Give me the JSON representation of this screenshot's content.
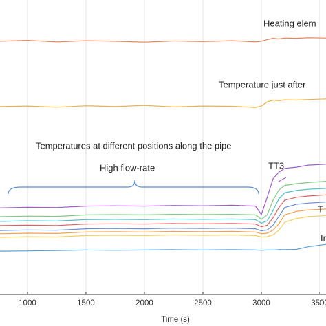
{
  "chart_data": {
    "type": "line",
    "x_label": "Time (s)",
    "x": [
      765,
      1000,
      1250,
      1500,
      1750,
      2000,
      2250,
      2500,
      2750,
      2950,
      3000,
      3050,
      3100,
      3150,
      3200,
      3300,
      3400,
      3553
    ],
    "xlim": [
      765,
      3553
    ],
    "xticks": [
      1000,
      1500,
      2000,
      2500,
      3000,
      3500
    ],
    "ylim": [
      0,
      100
    ],
    "grid": true,
    "annotations": [
      "Heating elem",
      "Temperature just after",
      "Temperatures at different positions along the pipe",
      "High flow-rate",
      "TT3",
      "T",
      "In"
    ],
    "series": [
      {
        "color": "#e8825a",
        "values": [
          86,
          86.3,
          85.8,
          86.2,
          86,
          85.7,
          86.1,
          85.9,
          86.2,
          85.8,
          86,
          86.6,
          87,
          86.8,
          87.1,
          87,
          87.2,
          87.1
        ]
      },
      {
        "color": "#f0b040",
        "values": [
          63.8,
          64,
          63.6,
          64.1,
          63.8,
          64.2,
          63.7,
          64,
          63.9,
          63.5,
          64,
          65.4,
          66,
          65.8,
          66.1,
          66,
          66.2,
          66.4
        ]
      },
      {
        "color": "#a05cc8",
        "values": [
          29.4,
          29.6,
          29.5,
          30,
          30.1,
          30,
          30.2,
          30.1,
          30.3,
          30,
          27.1,
          33,
          39.3,
          41.5,
          42.8,
          43.2,
          43.9,
          44.2
        ]
      },
      {
        "color": "#7fc97f",
        "values": [
          26.4,
          26.6,
          26.5,
          27,
          27.1,
          27,
          27.2,
          27.1,
          27.2,
          27,
          25.5,
          27,
          32,
          35.5,
          37,
          37.6,
          38,
          38.4
        ]
      },
      {
        "color": "#4fc0c8",
        "values": [
          24.8,
          25,
          24.9,
          25.4,
          25.5,
          25.4,
          25.6,
          25.5,
          25.6,
          25.4,
          24.2,
          25,
          28.5,
          32.5,
          34.5,
          35.3,
          35.7,
          36
        ]
      },
      {
        "color": "#e06060",
        "values": [
          23.4,
          23.5,
          23.4,
          23.9,
          24,
          23.9,
          24.1,
          24,
          24.1,
          23.9,
          23,
          23.5,
          26,
          29.5,
          32,
          33,
          33.4,
          33.8
        ]
      },
      {
        "color": "#6a8fd8",
        "values": [
          21.7,
          21.9,
          21.8,
          22.3,
          22.4,
          22.3,
          22.5,
          22.4,
          22.5,
          22.3,
          21.6,
          21.9,
          23.5,
          26.5,
          29.5,
          30.6,
          31,
          31.4
        ]
      },
      {
        "color": "#f5a050",
        "values": [
          20.6,
          20.8,
          20.7,
          21.2,
          21.3,
          21.2,
          21.4,
          21.3,
          21.4,
          21.2,
          20.6,
          20.8,
          21.8,
          24,
          27,
          28.2,
          28.7,
          29
        ]
      },
      {
        "color": "#f2d060",
        "values": [
          19.4,
          19.6,
          19.5,
          20,
          20.1,
          20,
          20.2,
          20.1,
          20.2,
          20,
          19.5,
          19.6,
          20.2,
          21.8,
          24.5,
          25.8,
          26.4,
          26.8
        ]
      },
      {
        "color": "#5aa0d8",
        "values": [
          14.7,
          14.8,
          14.9,
          15.1,
          15,
          15.1,
          15.2,
          15.1,
          15.2,
          15.1,
          15,
          15.1,
          15.1,
          15.2,
          15.2,
          15.3,
          16.2,
          17
        ]
      }
    ]
  }
}
